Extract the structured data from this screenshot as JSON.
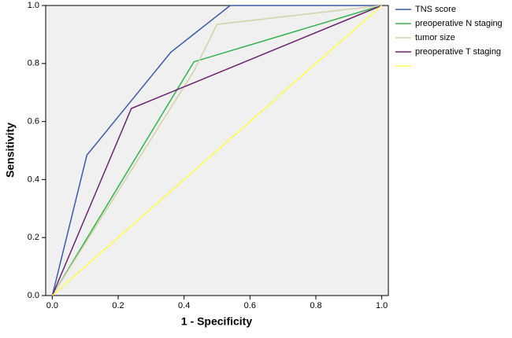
{
  "chart_data": {
    "type": "line",
    "x_label": "1 - Specificity",
    "y_label": "Sensitivity",
    "xlim": [
      -0.02,
      1.02
    ],
    "ylim": [
      0,
      1
    ],
    "xticks": [
      {
        "value": 0,
        "label": "0.0"
      },
      0.2,
      0.4,
      0.6,
      0.8,
      {
        "value": 1,
        "label": "1.0"
      }
    ],
    "yticks": [
      {
        "value": 0,
        "label": "0.0"
      },
      0.2,
      0.4,
      0.6,
      0.8,
      {
        "value": 1,
        "label": "1.0"
      }
    ],
    "grid": false,
    "legend": "outside-right",
    "series": [
      {
        "name": "TNS score",
        "color": "#3c5aa8",
        "x": [
          0,
          0.105,
          0.36,
          0.54,
          1
        ],
        "values": [
          0,
          0.484,
          0.839,
          1,
          1
        ]
      },
      {
        "name": "preoperative N staging",
        "color": "#30b34c",
        "x": [
          0,
          0.43,
          1
        ],
        "values": [
          0,
          0.806,
          1
        ]
      },
      {
        "name": "tumor size",
        "color": "#d6d0a8",
        "x": [
          0,
          0.43,
          0.5,
          1
        ],
        "values": [
          0,
          0.774,
          0.935,
          1
        ]
      },
      {
        "name": "preoperative T staging",
        "color": "#6c2272",
        "x": [
          0,
          0.24,
          1
        ],
        "values": [
          0,
          0.645,
          1
        ]
      },
      {
        "color": "#ffff44",
        "x": [
          0,
          1
        ],
        "values": [
          0,
          1
        ]
      }
    ]
  }
}
